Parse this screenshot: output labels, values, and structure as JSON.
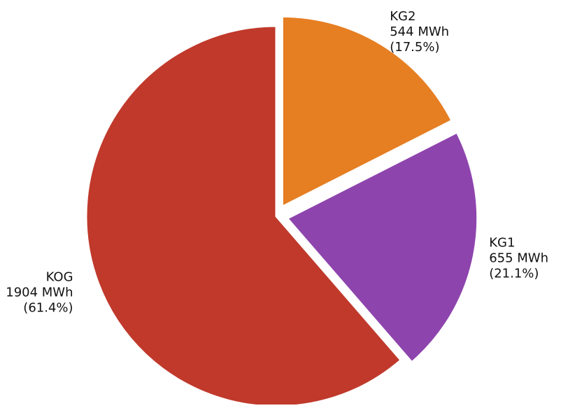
{
  "chart_data": {
    "type": "pie",
    "unit": "MWh",
    "slices": [
      {
        "label": "KG2",
        "value": 544,
        "value_text": "544 MWh",
        "percent_text": "(17.5%)",
        "color": "#e67e22",
        "exploded": true
      },
      {
        "label": "KG1",
        "value": 655,
        "value_text": "655 MWh",
        "percent_text": "(21.1%)",
        "color": "#8e44ad",
        "exploded": true
      },
      {
        "label": "KOG",
        "value": 1904,
        "value_text": "1904 MWh",
        "percent_text": "(61.4%)",
        "color": "#c0392b",
        "exploded": false
      }
    ],
    "start_angle": "12 o'clock",
    "direction": "clockwise",
    "legend": "none"
  }
}
